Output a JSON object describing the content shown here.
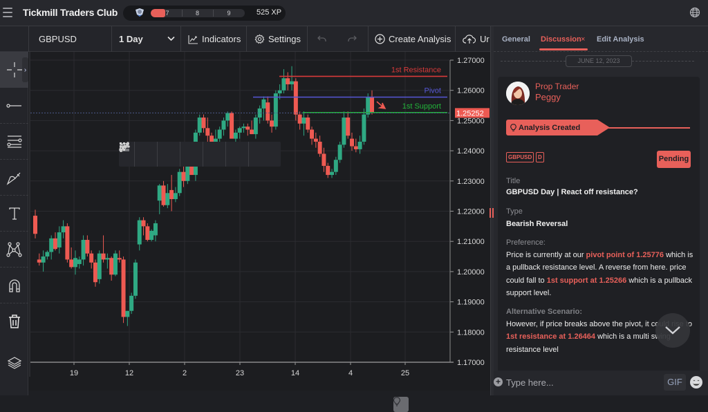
{
  "app": {
    "title": "Tickmill Traders Club",
    "xp": {
      "levels": [
        "7",
        "8",
        "9"
      ],
      "total": "525 XP",
      "progress_color": "#e8605a"
    }
  },
  "toolbar": {
    "symbol": "GBPUSD",
    "timeframe": "1 Day",
    "indicators_label": "Indicators",
    "settings_label": "Settings",
    "create_analysis_label": "Create Analysis",
    "upload_label": "Ur"
  },
  "left_tools": [
    "crosshair-icon",
    "trendline-icon",
    "fib-lines-icon",
    "brush-icon",
    "text-icon",
    "pattern-icon",
    "magnet-icon",
    "trash-icon",
    "layers-icon"
  ],
  "drawing_tools": [
    "drag-handle-icon",
    "ray-icon",
    "parallel-lines-icon",
    "fib-fan-icon",
    "brush-icon",
    "segment-icon",
    "pitchfork-icon"
  ],
  "chart_data": {
    "type": "candlestick",
    "symbol": "GBPUSD",
    "timeframe": "1 Day",
    "y_ticks": [
      "1.27000",
      "1.26000",
      "1.25000",
      "1.24000",
      "1.23000",
      "1.22000",
      "1.21000",
      "1.20000",
      "1.19000",
      "1.18000",
      "1.17000"
    ],
    "ylim": [
      1.17,
      1.27
    ],
    "x_ticks": [
      "19",
      "12",
      "2",
      "23",
      "14",
      "4",
      "25"
    ],
    "last_price": "1.25252",
    "levels": [
      {
        "name": "1st Resistance",
        "price": 1.26464,
        "color": "#d93a3a"
      },
      {
        "name": "Pivot",
        "price": 1.25776,
        "color": "#5757d6"
      },
      {
        "name": "1st Support",
        "price": 1.25266,
        "color": "#22b33a"
      }
    ],
    "up_color": "#2fa983",
    "down_color": "#ee5a52",
    "candles": [
      [
        1.2185,
        1.2205,
        1.211,
        1.2125
      ],
      [
        1.204,
        1.206,
        1.202,
        1.203
      ],
      [
        1.203,
        1.207,
        1.2,
        1.205
      ],
      [
        1.205,
        1.207,
        1.204,
        1.2065
      ],
      [
        1.2065,
        1.212,
        1.204,
        1.211
      ],
      [
        1.211,
        1.213,
        1.207,
        1.2075
      ],
      [
        1.208,
        1.215,
        1.206,
        1.213
      ],
      [
        1.213,
        1.217,
        1.211,
        1.215
      ],
      [
        1.215,
        1.216,
        1.203,
        1.204
      ],
      [
        1.204,
        1.208,
        1.201,
        1.2015
      ],
      [
        1.2015,
        1.207,
        1.199,
        1.2045
      ],
      [
        1.2025,
        1.205,
        1.201,
        1.204
      ],
      [
        1.204,
        1.212,
        1.202,
        1.2105
      ],
      [
        1.2105,
        1.212,
        1.205,
        1.206
      ],
      [
        1.206,
        1.207,
        1.201,
        1.203
      ],
      [
        1.203,
        1.204,
        1.195,
        1.1965
      ],
      [
        1.1975,
        1.207,
        1.196,
        1.206
      ],
      [
        1.206,
        1.212,
        1.203,
        1.204
      ],
      [
        1.204,
        1.206,
        1.201,
        1.2045
      ],
      [
        1.2045,
        1.205,
        1.197,
        1.199
      ],
      [
        1.199,
        1.207,
        1.1985,
        1.206
      ],
      [
        1.2045,
        1.207,
        1.203,
        1.204
      ],
      [
        1.204,
        1.205,
        1.183,
        1.185
      ],
      [
        1.185,
        1.187,
        1.182,
        1.187
      ],
      [
        1.187,
        1.193,
        1.186,
        1.192
      ],
      [
        1.192,
        1.204,
        1.191,
        1.203
      ],
      [
        1.209,
        1.218,
        1.207,
        1.217
      ],
      [
        1.217,
        1.218,
        1.212,
        1.215
      ],
      [
        1.215,
        1.216,
        1.21,
        1.2105
      ],
      [
        1.2105,
        1.214,
        1.21,
        1.2135
      ],
      [
        1.212,
        1.217,
        1.21,
        1.216
      ],
      [
        1.2235,
        1.229,
        1.219,
        1.2285
      ],
      [
        1.2285,
        1.23,
        1.2215,
        1.222
      ],
      [
        1.222,
        1.229,
        1.221,
        1.226
      ],
      [
        1.227,
        1.232,
        1.22,
        1.224
      ],
      [
        1.224,
        1.228,
        1.223,
        1.226
      ],
      [
        1.226,
        1.234,
        1.225,
        1.233
      ],
      [
        1.233,
        1.236,
        1.228,
        1.23
      ],
      [
        1.23,
        1.239,
        1.229,
        1.238
      ],
      [
        1.238,
        1.24,
        1.232,
        1.232
      ],
      [
        1.232,
        1.247,
        1.23,
        1.246
      ],
      [
        1.246,
        1.252,
        1.245,
        1.251
      ],
      [
        1.251,
        1.252,
        1.246,
        1.2475
      ],
      [
        1.2475,
        1.251,
        1.243,
        1.245
      ],
      [
        1.245,
        1.246,
        1.241,
        1.242
      ],
      [
        1.242,
        1.247,
        1.239,
        1.244
      ],
      [
        1.244,
        1.248,
        1.241,
        1.247
      ],
      [
        1.247,
        1.251,
        1.245,
        1.25
      ],
      [
        1.25,
        1.253,
        1.248,
        1.2525
      ],
      [
        1.2525,
        1.253,
        1.245,
        1.244
      ],
      [
        1.244,
        1.247,
        1.242,
        1.246
      ],
      [
        1.246,
        1.248,
        1.244,
        1.2475
      ],
      [
        1.2475,
        1.249,
        1.246,
        1.248
      ],
      [
        1.248,
        1.249,
        1.245,
        1.247
      ],
      [
        1.247,
        1.25,
        1.2455,
        1.2455
      ],
      [
        1.2455,
        1.252,
        1.244,
        1.251
      ],
      [
        1.251,
        1.255,
        1.249,
        1.254
      ],
      [
        1.254,
        1.258,
        1.25,
        1.257
      ],
      [
        1.256,
        1.258,
        1.249,
        1.25
      ],
      [
        1.25,
        1.252,
        1.246,
        1.248
      ],
      [
        1.248,
        1.26,
        1.247,
        1.259
      ],
      [
        1.259,
        1.262,
        1.257,
        1.26
      ],
      [
        1.26,
        1.267,
        1.259,
        1.264
      ],
      [
        1.264,
        1.266,
        1.26,
        1.262
      ],
      [
        1.262,
        1.268,
        1.26,
        1.263
      ],
      [
        1.263,
        1.264,
        1.25,
        1.252
      ],
      [
        1.252,
        1.253,
        1.247,
        1.249
      ],
      [
        1.249,
        1.253,
        1.245,
        1.251
      ],
      [
        1.251,
        1.252,
        1.246,
        1.247
      ],
      [
        1.247,
        1.248,
        1.242,
        1.244
      ],
      [
        1.244,
        1.246,
        1.241,
        1.243
      ],
      [
        1.243,
        1.245,
        1.238,
        1.239
      ],
      [
        1.239,
        1.241,
        1.233,
        1.235
      ],
      [
        1.235,
        1.236,
        1.231,
        1.232
      ],
      [
        1.232,
        1.234,
        1.231,
        1.233
      ],
      [
        1.233,
        1.238,
        1.232,
        1.237
      ],
      [
        1.237,
        1.243,
        1.236,
        1.242
      ],
      [
        1.242,
        1.253,
        1.241,
        1.251
      ],
      [
        1.251,
        1.253,
        1.244,
        1.245
      ],
      [
        1.244,
        1.246,
        1.24,
        1.2415
      ],
      [
        1.2415,
        1.244,
        1.2395,
        1.2405
      ],
      [
        1.2405,
        1.245,
        1.239,
        1.243
      ],
      [
        1.243,
        1.254,
        1.242,
        1.252
      ],
      [
        1.252,
        1.259,
        1.251,
        1.2577
      ],
      [
        1.2577,
        1.26,
        1.252,
        1.2525
      ]
    ]
  },
  "side_panel": {
    "tabs": [
      "General",
      "Discussion",
      "Edit Analysis"
    ],
    "active_tab": "Discussion",
    "close_glyph": "×",
    "date": "JUNE 12, 2023",
    "post": {
      "role": "Prop Trader",
      "author": "Peggy",
      "status_banner": "Analysis Created",
      "tags": [
        "GBPUSD",
        "D"
      ],
      "status": "Pending",
      "title_label": "Title",
      "title": "GBPUSD Day | React off resistance?",
      "type_label": "Type",
      "type": "Bearish Reversal",
      "preference_label": "Preference:",
      "preference": {
        "p1": "Price is currently at our ",
        "h1": "pivot point of 1.25776",
        "p2": " which is a pullback resistance level. A reverse from here. price could fall to ",
        "h2": "1st support at 1.25266",
        "p3": " which is a pullback support level."
      },
      "alternative_label": "Alternative Scenario:",
      "alternative": {
        "p1": "However, if price breaks above the pivot, it could rise to ",
        "h1": "1st resistance at 1.26464",
        "p2": " which is a multi swing resistance level"
      }
    },
    "composer": {
      "placeholder": "Type here...",
      "gif_label": "GIF"
    }
  }
}
